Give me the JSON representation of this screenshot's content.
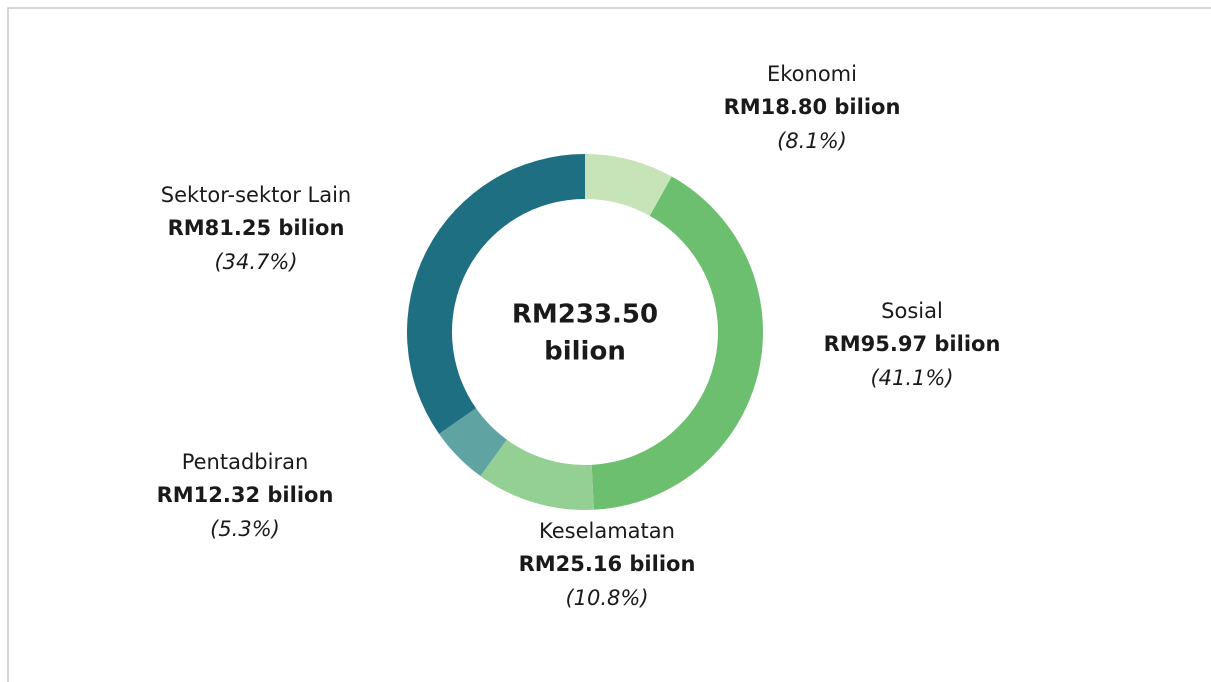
{
  "chart_data": {
    "type": "donut",
    "categories": [
      "Ekonomi",
      "Sosial",
      "Keselamatan",
      "Pentadbiran",
      "Sektor-sektor Lain"
    ],
    "values": [
      8.1,
      41.1,
      10.8,
      5.3,
      34.7
    ],
    "value_labels": [
      "(8.1%)",
      "(41.1%)",
      "(10.8%)",
      "(5.3%)",
      "(34.7%)"
    ],
    "amount_labels": [
      "RM18.80 bilion",
      "RM95.97 bilion",
      "RM25.16 bilion",
      "RM12.32 bilion",
      "RM81.25 bilion"
    ],
    "colors": [
      "#c6e4b8",
      "#6cbf6e",
      "#94cf93",
      "#5fa3a2",
      "#1f6f82"
    ],
    "center_label": [
      "RM233.50",
      "bilion"
    ]
  }
}
